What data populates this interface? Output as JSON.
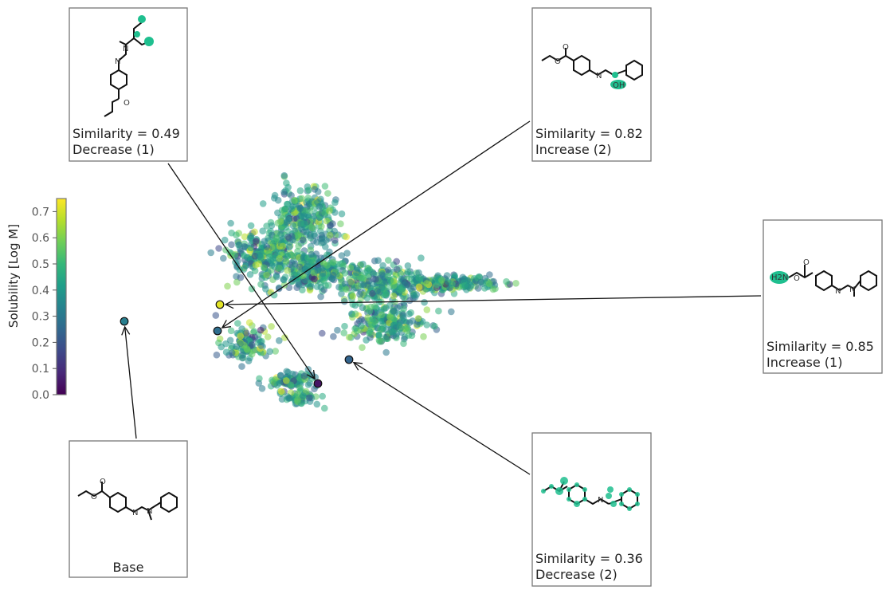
{
  "chart_data": {
    "type": "scatter",
    "colorbar": {
      "label": "Solubility [Log M]",
      "range": [
        0.0,
        0.75
      ],
      "ticks": [
        "0.0",
        "0.1",
        "0.2",
        "0.3",
        "0.4",
        "0.5",
        "0.6",
        "0.7"
      ],
      "colormap": "viridis"
    },
    "highlight_points": [
      {
        "name": "base",
        "x": -3.15,
        "y": -0.25,
        "value": 0.32
      },
      {
        "name": "decrease-1",
        "x": 0.9,
        "y": -1.55,
        "value": 0.04
      },
      {
        "name": "increase-2",
        "x": -1.2,
        "y": -0.45,
        "value": 0.27
      },
      {
        "name": "increase-1",
        "x": -1.15,
        "y": 0.1,
        "value": 0.72
      },
      {
        "name": "decrease-2",
        "x": 1.55,
        "y": -1.05,
        "value": 0.24
      }
    ],
    "annotations": [
      {
        "name": "base",
        "lines": [
          "Base"
        ]
      },
      {
        "name": "decrease-1",
        "lines": [
          "Similarity = 0.49",
          "Decrease (1)"
        ]
      },
      {
        "name": "increase-2",
        "lines": [
          "Similarity = 0.82",
          "Increase (2)"
        ]
      },
      {
        "name": "increase-1",
        "lines": [
          "Similarity = 0.85",
          "Increase (1)"
        ]
      },
      {
        "name": "decrease-2",
        "lines": [
          "Similarity = 0.36",
          "Decrease (2)"
        ]
      }
    ],
    "molecule_atom_labels": [
      "O",
      "N",
      "OH",
      "H2N"
    ],
    "cluster": {
      "approx_point_count": 1600,
      "color_value_range": [
        0.0,
        0.75
      ]
    },
    "grid": false,
    "legend": "none"
  },
  "colors": {
    "viridis": [
      "#440154",
      "#482878",
      "#3e4989",
      "#31688e",
      "#26828e",
      "#1f9e89",
      "#35b779",
      "#6ece58",
      "#b5de2b",
      "#fde725"
    ],
    "highlight_atom": "#1fbf8f",
    "box_border": "#777777",
    "arrow": "#111111"
  }
}
